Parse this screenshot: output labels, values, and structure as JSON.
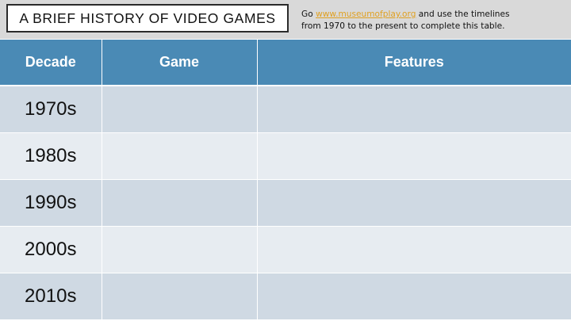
{
  "title": "A BRIEF HISTORY OF VIDEO GAMES",
  "instructions": {
    "prefix": "Go ",
    "link": "www.museumofplay.org",
    "line1_suffix": " and use the timelines",
    "line2": "from 1970 to the present to complete this table."
  },
  "table": {
    "headers": [
      "Decade",
      "Game",
      "Features"
    ],
    "rows": [
      {
        "decade": "1970s",
        "game": "",
        "features": ""
      },
      {
        "decade": "1980s",
        "game": "",
        "features": ""
      },
      {
        "decade": "1990s",
        "game": "",
        "features": ""
      },
      {
        "decade": "2000s",
        "game": "",
        "features": ""
      },
      {
        "decade": "2010s",
        "game": "",
        "features": ""
      }
    ]
  },
  "colors": {
    "header_bg": "#4a8ab5",
    "row_dark": "#cfd9e3",
    "row_light": "#e7ecf1",
    "link": "#e0a020",
    "band": "#d9d9d9"
  }
}
